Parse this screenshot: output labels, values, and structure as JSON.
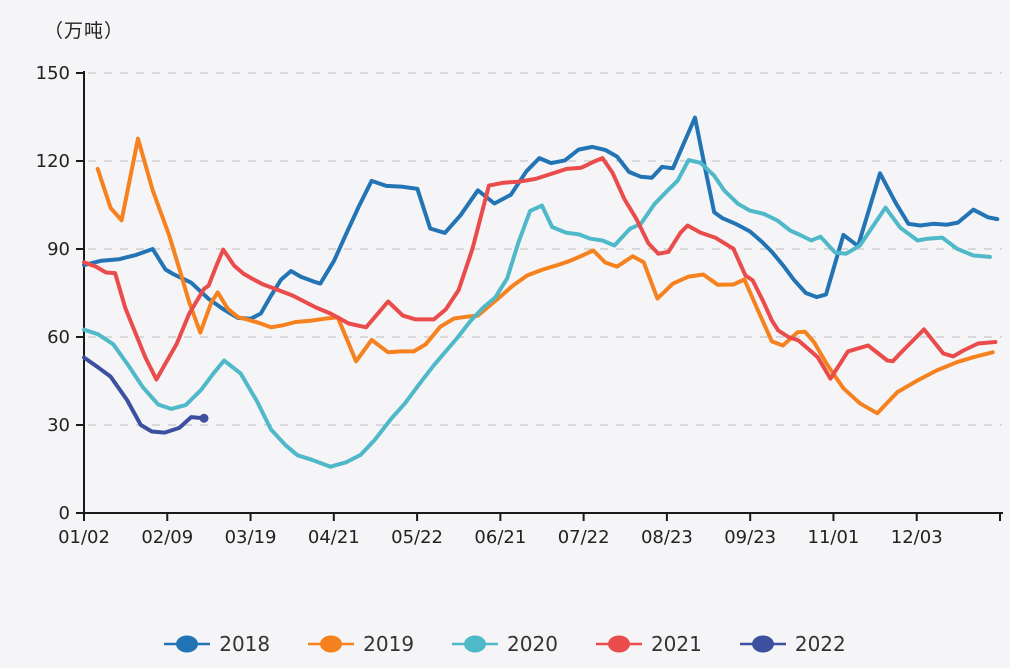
{
  "unit_label": "（万吨）",
  "colors": {
    "s2018": "#2274b5",
    "s2019": "#f5821f",
    "s2020": "#4fb9c9",
    "s2021": "#ea4b4b",
    "s2022": "#3d4f9f",
    "axis": "#1a1a1a",
    "grid": "#c8c8c8",
    "tick_text": "#222222",
    "legend_text": "#333333",
    "background": "#f5f5f7"
  },
  "chart_data": {
    "type": "line",
    "title": "",
    "ylabel": "（万吨）",
    "ylim": [
      0,
      150
    ],
    "y_ticks": [
      0,
      30,
      60,
      90,
      120,
      150
    ],
    "x_tick_labels": [
      "01/02",
      "02/09",
      "03/19",
      "04/21",
      "05/22",
      "06/21",
      "07/22",
      "08/23",
      "09/23",
      "11/01",
      "12/03"
    ],
    "x_tick_count": 12,
    "grid": "horizontal-dashed",
    "legend_position": "bottom",
    "series": [
      {
        "name": "2018",
        "color": "#2274b5",
        "end_dot": false,
        "points": [
          [
            0.0,
            84.5
          ],
          [
            0.019,
            86
          ],
          [
            0.038,
            86.5
          ],
          [
            0.057,
            88
          ],
          [
            0.075,
            90
          ],
          [
            0.089,
            83
          ],
          [
            0.097,
            81.5
          ],
          [
            0.117,
            78.5
          ],
          [
            0.136,
            73
          ],
          [
            0.152,
            69.5
          ],
          [
            0.168,
            66.5
          ],
          [
            0.182,
            66.2
          ],
          [
            0.193,
            68
          ],
          [
            0.204,
            74
          ],
          [
            0.215,
            79.5
          ],
          [
            0.226,
            82.5
          ],
          [
            0.237,
            80.5
          ],
          [
            0.25,
            79
          ],
          [
            0.258,
            78.2
          ],
          [
            0.273,
            86
          ],
          [
            0.286,
            95
          ],
          [
            0.3,
            104.5
          ],
          [
            0.314,
            113.2
          ],
          [
            0.33,
            111.5
          ],
          [
            0.348,
            111.2
          ],
          [
            0.364,
            110.5
          ],
          [
            0.378,
            97
          ],
          [
            0.394,
            95.5
          ],
          [
            0.411,
            101.5
          ],
          [
            0.43,
            110
          ],
          [
            0.448,
            105.5
          ],
          [
            0.466,
            108.5
          ],
          [
            0.483,
            116.5
          ],
          [
            0.497,
            121
          ],
          [
            0.51,
            119.3
          ],
          [
            0.525,
            120.2
          ],
          [
            0.54,
            123.9
          ],
          [
            0.555,
            124.8
          ],
          [
            0.569,
            123.8
          ],
          [
            0.582,
            121.5
          ],
          [
            0.595,
            116.3
          ],
          [
            0.608,
            114.6
          ],
          [
            0.62,
            114.3
          ],
          [
            0.631,
            118
          ],
          [
            0.643,
            117.5
          ],
          [
            0.652,
            124
          ],
          [
            0.667,
            134.8
          ],
          [
            0.679,
            116
          ],
          [
            0.688,
            102.5
          ],
          [
            0.697,
            100.5
          ],
          [
            0.712,
            98.5
          ],
          [
            0.727,
            96
          ],
          [
            0.74,
            92.5
          ],
          [
            0.751,
            89
          ],
          [
            0.763,
            84.5
          ],
          [
            0.775,
            79.5
          ],
          [
            0.788,
            75
          ],
          [
            0.8,
            73.6
          ],
          [
            0.81,
            74.5
          ],
          [
            0.829,
            94.8
          ],
          [
            0.845,
            91
          ],
          [
            0.869,
            115.8
          ],
          [
            0.886,
            105.8
          ],
          [
            0.9,
            98.6
          ],
          [
            0.913,
            98
          ],
          [
            0.927,
            98.6
          ],
          [
            0.942,
            98.3
          ],
          [
            0.954,
            99
          ],
          [
            0.971,
            103.4
          ],
          [
            0.987,
            100.8
          ],
          [
            0.997,
            100.2
          ]
        ]
      },
      {
        "name": "2019",
        "color": "#f5821f",
        "end_dot": false,
        "points": [
          [
            0.015,
            117.3
          ],
          [
            0.029,
            104
          ],
          [
            0.041,
            99.8
          ],
          [
            0.059,
            127.6
          ],
          [
            0.075,
            110
          ],
          [
            0.093,
            94.6
          ],
          [
            0.104,
            83.3
          ],
          [
            0.115,
            71.8
          ],
          [
            0.127,
            61.5
          ],
          [
            0.139,
            71.8
          ],
          [
            0.146,
            75.2
          ],
          [
            0.157,
            69.6
          ],
          [
            0.168,
            66.8
          ],
          [
            0.18,
            65.8
          ],
          [
            0.191,
            64.8
          ],
          [
            0.204,
            63.3
          ],
          [
            0.217,
            64
          ],
          [
            0.231,
            65.1
          ],
          [
            0.248,
            65.6
          ],
          [
            0.262,
            66.2
          ],
          [
            0.277,
            66.7
          ],
          [
            0.297,
            51.7
          ],
          [
            0.314,
            59
          ],
          [
            0.332,
            54.8
          ],
          [
            0.346,
            55.1
          ],
          [
            0.36,
            55.1
          ],
          [
            0.373,
            57.5
          ],
          [
            0.389,
            63.5
          ],
          [
            0.404,
            66.3
          ],
          [
            0.417,
            66.9
          ],
          [
            0.43,
            67.3
          ],
          [
            0.442,
            70.5
          ],
          [
            0.452,
            73.1
          ],
          [
            0.468,
            77.5
          ],
          [
            0.484,
            81
          ],
          [
            0.501,
            83
          ],
          [
            0.517,
            84.5
          ],
          [
            0.531,
            86
          ],
          [
            0.544,
            87.8
          ],
          [
            0.556,
            89.5
          ],
          [
            0.569,
            85.4
          ],
          [
            0.582,
            84
          ],
          [
            0.599,
            87.5
          ],
          [
            0.611,
            85.5
          ],
          [
            0.626,
            73.1
          ],
          [
            0.643,
            78.2
          ],
          [
            0.66,
            80.6
          ],
          [
            0.676,
            81.3
          ],
          [
            0.692,
            77.8
          ],
          [
            0.709,
            77.9
          ],
          [
            0.721,
            79.6
          ],
          [
            0.738,
            67.5
          ],
          [
            0.751,
            58.5
          ],
          [
            0.763,
            57.1
          ],
          [
            0.779,
            61.6
          ],
          [
            0.787,
            61.8
          ],
          [
            0.797,
            58.2
          ],
          [
            0.811,
            50.7
          ],
          [
            0.829,
            42.5
          ],
          [
            0.847,
            37.4
          ],
          [
            0.866,
            34
          ],
          [
            0.888,
            41.2
          ],
          [
            0.91,
            45.2
          ],
          [
            0.931,
            48.6
          ],
          [
            0.953,
            51.4
          ],
          [
            0.971,
            53.1
          ],
          [
            0.992,
            54.8
          ]
        ]
      },
      {
        "name": "2020",
        "color": "#4fb9c9",
        "end_dot": false,
        "points": [
          [
            0.0,
            62.5
          ],
          [
            0.015,
            61
          ],
          [
            0.032,
            57.5
          ],
          [
            0.048,
            50.5
          ],
          [
            0.064,
            43
          ],
          [
            0.081,
            37
          ],
          [
            0.095,
            35.5
          ],
          [
            0.111,
            36.8
          ],
          [
            0.128,
            42
          ],
          [
            0.141,
            47.5
          ],
          [
            0.153,
            52
          ],
          [
            0.171,
            47.6
          ],
          [
            0.189,
            38
          ],
          [
            0.204,
            28.5
          ],
          [
            0.22,
            23.1
          ],
          [
            0.233,
            19.7
          ],
          [
            0.25,
            18
          ],
          [
            0.269,
            15.8
          ],
          [
            0.286,
            17.3
          ],
          [
            0.302,
            19.8
          ],
          [
            0.317,
            24.8
          ],
          [
            0.335,
            32
          ],
          [
            0.351,
            37.6
          ],
          [
            0.365,
            43.5
          ],
          [
            0.381,
            50
          ],
          [
            0.394,
            54.8
          ],
          [
            0.407,
            59.5
          ],
          [
            0.422,
            65.5
          ],
          [
            0.436,
            70.1
          ],
          [
            0.449,
            73.5
          ],
          [
            0.462,
            80
          ],
          [
            0.474,
            92
          ],
          [
            0.487,
            103
          ],
          [
            0.5,
            104.8
          ],
          [
            0.511,
            97.5
          ],
          [
            0.526,
            95.6
          ],
          [
            0.54,
            95
          ],
          [
            0.553,
            93.5
          ],
          [
            0.566,
            92.9
          ],
          [
            0.579,
            91.2
          ],
          [
            0.596,
            96.9
          ],
          [
            0.608,
            98.6
          ],
          [
            0.623,
            105.4
          ],
          [
            0.637,
            109.9
          ],
          [
            0.648,
            113.3
          ],
          [
            0.66,
            120.3
          ],
          [
            0.673,
            119.4
          ],
          [
            0.688,
            115
          ],
          [
            0.699,
            109.9
          ],
          [
            0.714,
            105.4
          ],
          [
            0.727,
            103.1
          ],
          [
            0.742,
            102
          ],
          [
            0.757,
            99.7
          ],
          [
            0.771,
            96.3
          ],
          [
            0.783,
            94.6
          ],
          [
            0.794,
            92.9
          ],
          [
            0.804,
            94.2
          ],
          [
            0.82,
            88.8
          ],
          [
            0.832,
            88.4
          ],
          [
            0.847,
            91.2
          ],
          [
            0.875,
            104.1
          ],
          [
            0.891,
            97.3
          ],
          [
            0.91,
            92.9
          ],
          [
            0.921,
            93.5
          ],
          [
            0.937,
            93.9
          ],
          [
            0.953,
            90.1
          ],
          [
            0.971,
            87.8
          ],
          [
            0.989,
            87.3
          ]
        ]
      },
      {
        "name": "2021",
        "color": "#ea4b4b",
        "end_dot": false,
        "points": [
          [
            0.0,
            85.5
          ],
          [
            0.013,
            84
          ],
          [
            0.024,
            82
          ],
          [
            0.034,
            81.8
          ],
          [
            0.045,
            70
          ],
          [
            0.055,
            62.2
          ],
          [
            0.067,
            53
          ],
          [
            0.079,
            45.5
          ],
          [
            0.089,
            51
          ],
          [
            0.101,
            57.5
          ],
          [
            0.115,
            68
          ],
          [
            0.131,
            76.4
          ],
          [
            0.136,
            77.5
          ],
          [
            0.144,
            83.9
          ],
          [
            0.152,
            89.8
          ],
          [
            0.164,
            84.3
          ],
          [
            0.174,
            81.6
          ],
          [
            0.184,
            79.8
          ],
          [
            0.195,
            78
          ],
          [
            0.208,
            76.5
          ],
          [
            0.228,
            74.1
          ],
          [
            0.253,
            70.1
          ],
          [
            0.269,
            68
          ],
          [
            0.278,
            66.5
          ],
          [
            0.289,
            64.6
          ],
          [
            0.308,
            63.3
          ],
          [
            0.332,
            72.1
          ],
          [
            0.348,
            67.3
          ],
          [
            0.362,
            66
          ],
          [
            0.382,
            66
          ],
          [
            0.395,
            69.4
          ],
          [
            0.409,
            76
          ],
          [
            0.424,
            90
          ],
          [
            0.442,
            111.6
          ],
          [
            0.458,
            112.6
          ],
          [
            0.474,
            112.9
          ],
          [
            0.493,
            113.9
          ],
          [
            0.51,
            115.6
          ],
          [
            0.527,
            117.3
          ],
          [
            0.543,
            117.7
          ],
          [
            0.556,
            119.7
          ],
          [
            0.566,
            121
          ],
          [
            0.577,
            116
          ],
          [
            0.59,
            107
          ],
          [
            0.603,
            100.3
          ],
          [
            0.616,
            92
          ],
          [
            0.627,
            88.4
          ],
          [
            0.638,
            89
          ],
          [
            0.651,
            95.5
          ],
          [
            0.659,
            98
          ],
          [
            0.673,
            95.6
          ],
          [
            0.689,
            93.9
          ],
          [
            0.709,
            90.1
          ],
          [
            0.722,
            81
          ],
          [
            0.73,
            79.3
          ],
          [
            0.742,
            71.8
          ],
          [
            0.751,
            65.6
          ],
          [
            0.758,
            62.2
          ],
          [
            0.769,
            60
          ],
          [
            0.78,
            58.8
          ],
          [
            0.795,
            54.8
          ],
          [
            0.801,
            53.1
          ],
          [
            0.815,
            45.8
          ],
          [
            0.834,
            55.1
          ],
          [
            0.845,
            56.1
          ],
          [
            0.856,
            57.1
          ],
          [
            0.877,
            52
          ],
          [
            0.883,
            51.7
          ],
          [
            0.891,
            54.4
          ],
          [
            0.904,
            58.5
          ],
          [
            0.917,
            62.6
          ],
          [
            0.938,
            54.4
          ],
          [
            0.949,
            53.4
          ],
          [
            0.96,
            55.4
          ],
          [
            0.976,
            57.8
          ],
          [
            0.995,
            58.3
          ]
        ]
      },
      {
        "name": "2022",
        "color": "#3d4f9f",
        "end_dot": true,
        "points": [
          [
            0.0,
            53
          ],
          [
            0.016,
            49.5
          ],
          [
            0.029,
            46.5
          ],
          [
            0.047,
            38.5
          ],
          [
            0.062,
            30
          ],
          [
            0.074,
            27.8
          ],
          [
            0.088,
            27.4
          ],
          [
            0.104,
            29
          ],
          [
            0.117,
            32.7
          ],
          [
            0.131,
            32.3
          ]
        ]
      }
    ]
  },
  "legend": {
    "items": [
      {
        "label": "2018",
        "color": "#2274b5"
      },
      {
        "label": "2019",
        "color": "#f5821f"
      },
      {
        "label": "2020",
        "color": "#4fb9c9"
      },
      {
        "label": "2021",
        "color": "#ea4b4b"
      },
      {
        "label": "2022",
        "color": "#3d4f9f"
      }
    ]
  }
}
